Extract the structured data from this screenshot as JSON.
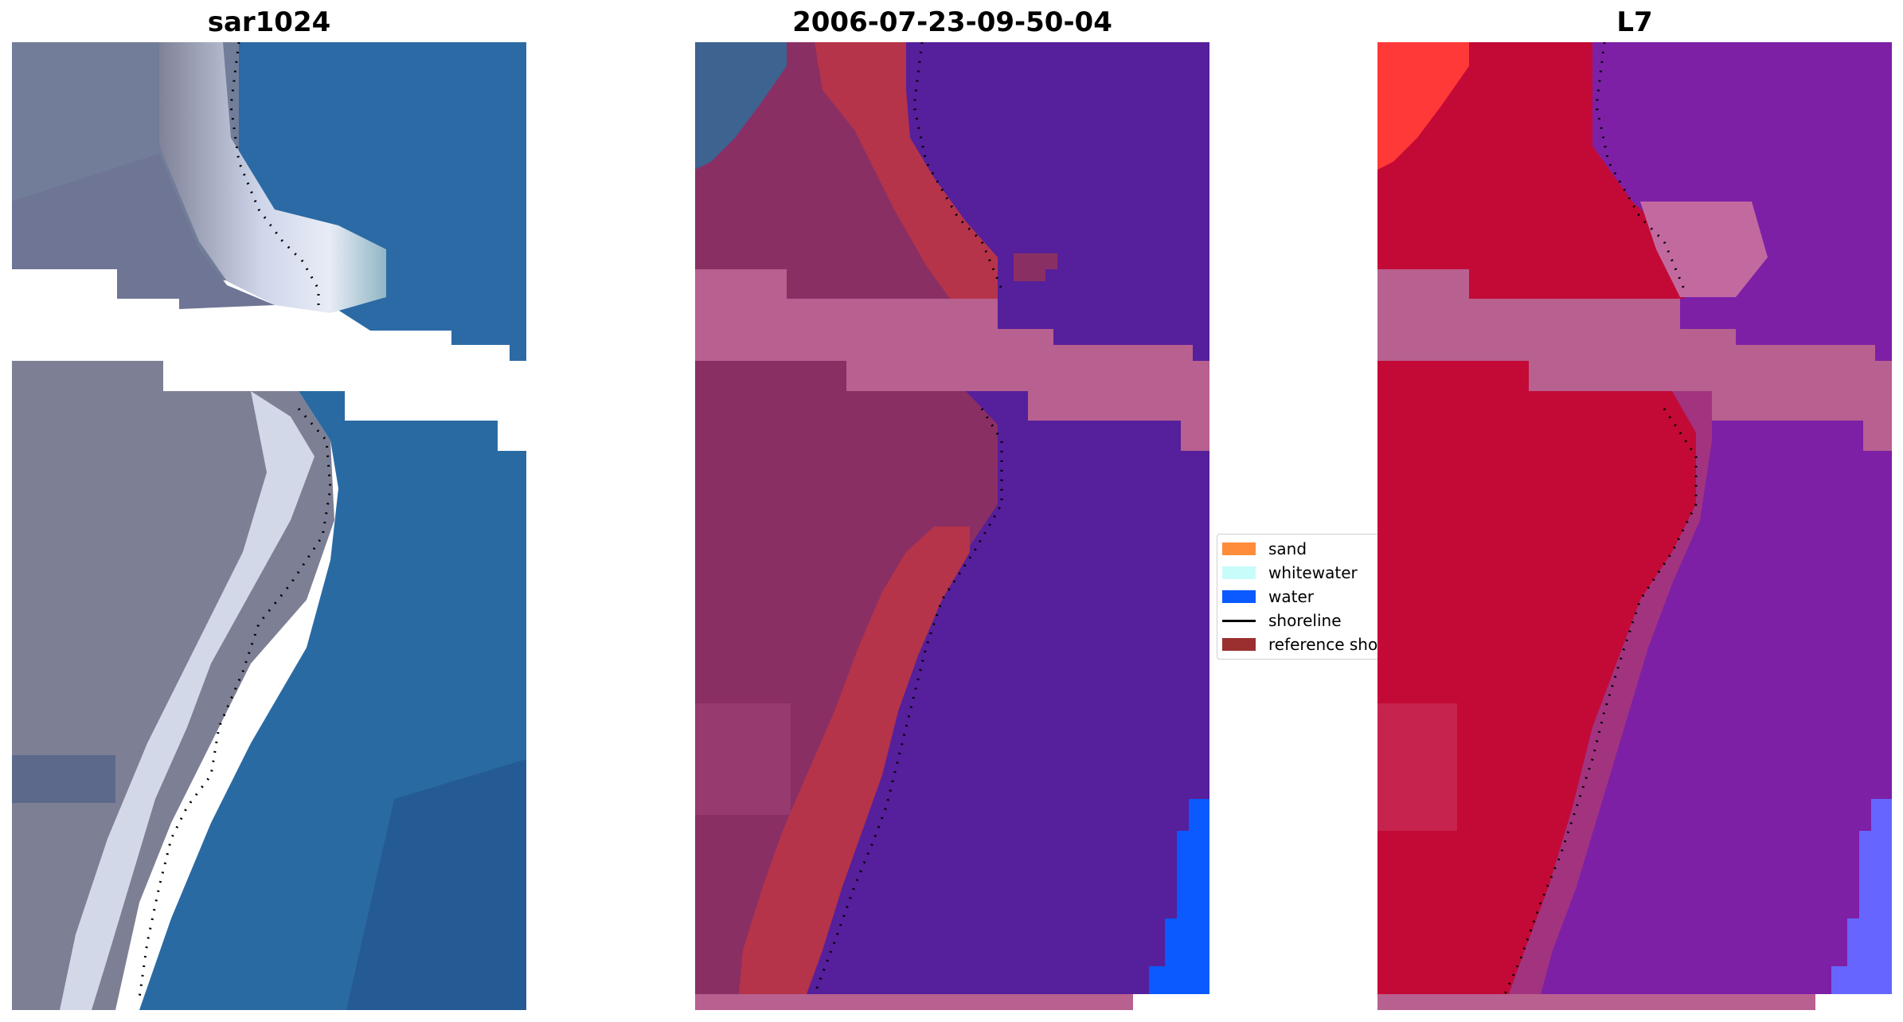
{
  "panels": [
    {
      "title": "sar1024"
    },
    {
      "title": "2006-07-23-09-50-04"
    },
    {
      "title": "L7"
    }
  ],
  "legend": {
    "items": [
      {
        "label": "sand",
        "color": "#ff8c3a",
        "kind": "patch"
      },
      {
        "label": "whitewater",
        "color": "#c8fcfa",
        "kind": "patch"
      },
      {
        "label": "water",
        "color": "#0a5aff",
        "kind": "patch"
      },
      {
        "label": "shoreline",
        "color": "#000000",
        "kind": "line"
      },
      {
        "label": "reference shoreline buffer",
        "color": "#9b2f2f",
        "kind": "patch"
      }
    ]
  },
  "colors": {
    "rgb_land": "#7f8298",
    "rgb_sand": "#dfe4f2",
    "rgb_water": "#2a6aa2",
    "class_land": "#8a2f64",
    "class_buffer": "#b5344a",
    "class_water": "#561f9b",
    "class_nodata": "#b8608f",
    "class_water_blue": "#0a5aff",
    "ndwi_land": "#c30a36",
    "ndwi_water": "#7d20a6",
    "ndwi_nodata": "#b8608f",
    "ndwi_bright_red": "#ff3838",
    "ndwi_light_blue": "#6666ff"
  }
}
